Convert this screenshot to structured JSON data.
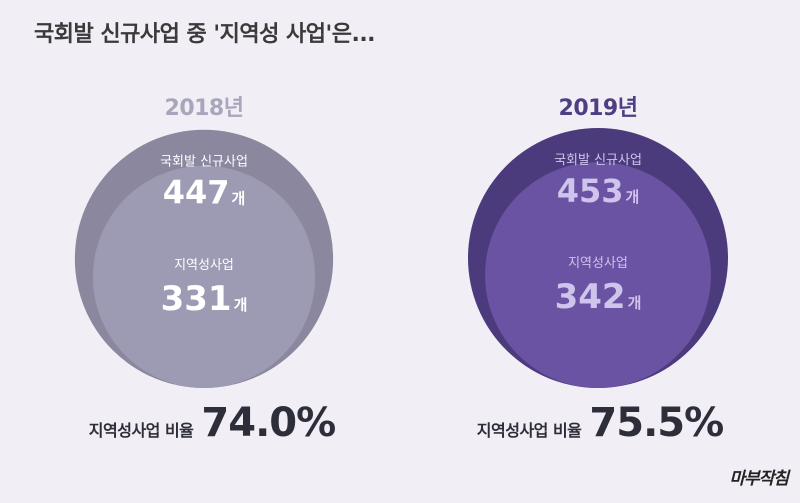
{
  "title": "국회발 신규사업 중 '지역성 사업'은...",
  "logo": "마부작침",
  "colors": {
    "background": "#f1eef5",
    "outer_2018": "#8a879e",
    "inner_2018": "#9d9ab3",
    "outer_2019": "#4b3b7c",
    "inner_2019": "#6a53a3",
    "label_2019": "#cfc4ec",
    "year_2018": "#a9a6bb",
    "year_2019": "#4f3e82"
  },
  "chart_data": [
    {
      "type": "nested-circle",
      "year": "2018년",
      "categories": [
        "국회발 신규사업",
        "지역성사업"
      ],
      "values": [
        447,
        331
      ],
      "unit": "개",
      "ratio_label": "지역성사업 비율",
      "ratio_value": "74.0%"
    },
    {
      "type": "nested-circle",
      "year": "2019년",
      "categories": [
        "국회발 신규사업",
        "지역성사업"
      ],
      "values": [
        453,
        342
      ],
      "unit": "개",
      "ratio_label": "지역성사업 비율",
      "ratio_value": "75.5%"
    }
  ]
}
